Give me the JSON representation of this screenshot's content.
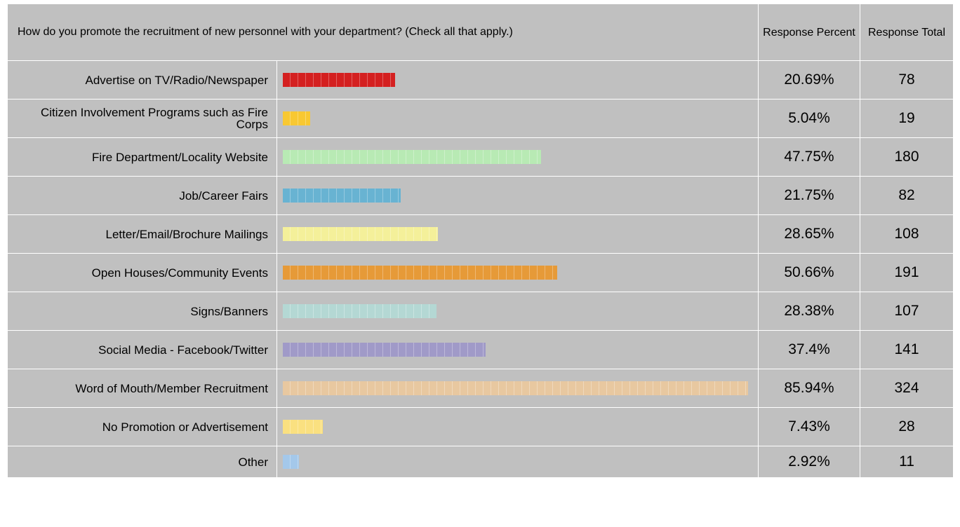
{
  "question": "How do you promote the recruitment of new personnel with your department? (Check all that apply.)",
  "headers": {
    "percent": "Response Percent",
    "total": "Response Total"
  },
  "chart_data": {
    "type": "bar",
    "orientation": "horizontal",
    "title": "How do you promote the recruitment of new personnel with your department? (Check all that apply.)",
    "xlim": [
      0,
      100
    ],
    "categories": [
      "Advertise on TV/Radio/Newspaper",
      "Citizen Involvement Programs such as Fire Corps",
      "Fire Department/Locality Website",
      "Job/Career Fairs",
      "Letter/Email/Brochure Mailings",
      "Open Houses/Community Events",
      "Signs/Banners",
      "Social Media - Facebook/Twitter",
      "Word of Mouth/Member Recruitment",
      "No Promotion or Advertisement",
      "Other"
    ],
    "values": [
      20.69,
      5.04,
      47.75,
      21.75,
      28.65,
      50.66,
      28.38,
      37.4,
      85.94,
      7.43,
      2.92
    ],
    "percent_labels": [
      "20.69%",
      "5.04%",
      "47.75%",
      "21.75%",
      "28.65%",
      "50.66%",
      "28.38%",
      "37.4%",
      "85.94%",
      "7.43%",
      "2.92%"
    ],
    "totals": [
      "78",
      "19",
      "180",
      "82",
      "108",
      "191",
      "107",
      "141",
      "324",
      "28",
      "11"
    ],
    "colors": [
      "#d42020",
      "#f8c832",
      "#b8eab4",
      "#68b3d2",
      "#f4f09a",
      "#e69a38",
      "#b4d8d4",
      "#a09ac8",
      "#e8c8a0",
      "#fae080",
      "#a4c8ea"
    ]
  }
}
